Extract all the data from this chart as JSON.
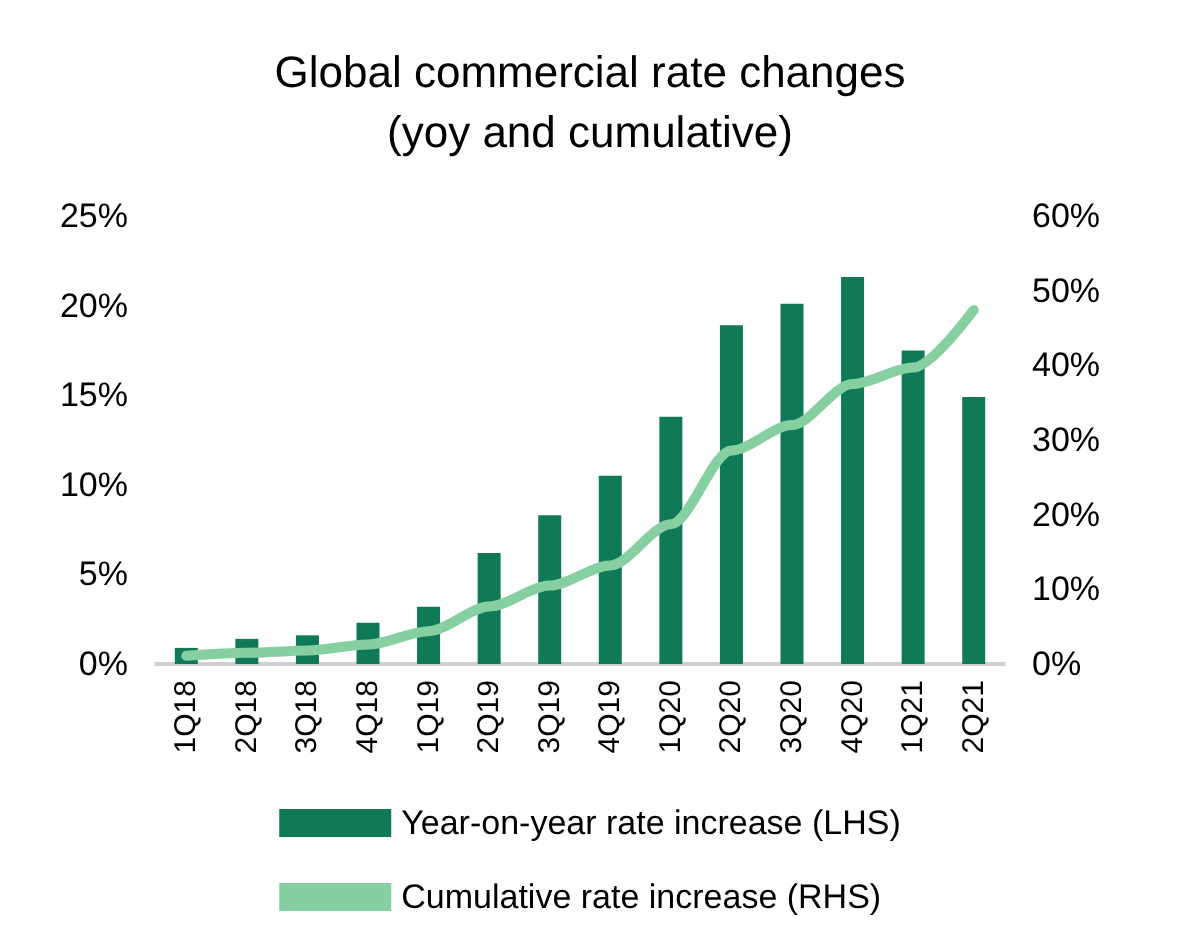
{
  "chart_data": {
    "type": "bar",
    "title": "Global commercial rate changes\n(yoy and cumulative)",
    "categories": [
      "1Q18",
      "2Q18",
      "3Q18",
      "4Q18",
      "1Q19",
      "2Q19",
      "3Q19",
      "4Q19",
      "1Q20",
      "2Q20",
      "3Q20",
      "4Q20",
      "1Q21",
      "2Q21"
    ],
    "series": [
      {
        "name": "Year-on-year rate increase (LHS)",
        "color": "#107a58",
        "values": [
          0.9,
          1.4,
          1.6,
          2.3,
          3.2,
          6.2,
          8.3,
          10.5,
          13.8,
          18.9,
          20.1,
          21.6,
          17.5,
          14.9
        ]
      },
      {
        "name": "Cumulative rate increase (RHS)",
        "type": "line",
        "axis": "y2",
        "color": "#86cfa0",
        "values": [
          1.1,
          1.5,
          1.8,
          2.6,
          4.4,
          7.7,
          10.5,
          13.2,
          18.7,
          28.6,
          32.0,
          37.5,
          39.7,
          47.4
        ]
      }
    ],
    "ylim": [
      0,
      25
    ],
    "yticks": [
      {
        "value": 0,
        "label": "0%"
      },
      {
        "value": 5,
        "label": "5%"
      },
      {
        "value": 10,
        "label": "10%"
      },
      {
        "value": 15,
        "label": "15%"
      },
      {
        "value": 20,
        "label": "20%"
      },
      {
        "value": 25,
        "label": "25%"
      }
    ],
    "y2lim": [
      0,
      60
    ],
    "y2ticks": [
      {
        "value": 0,
        "label": "0%"
      },
      {
        "value": 10,
        "label": "10%"
      },
      {
        "value": 20,
        "label": "20%"
      },
      {
        "value": 30,
        "label": "30%"
      },
      {
        "value": 40,
        "label": "40%"
      },
      {
        "value": 50,
        "label": "50%"
      },
      {
        "value": 60,
        "label": "60%"
      }
    ],
    "legend": "bottom",
    "grid": false,
    "marker": "none",
    "line_style": "solid"
  }
}
